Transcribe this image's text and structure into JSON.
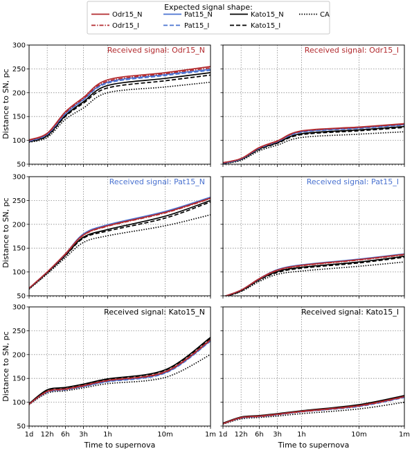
{
  "legend": {
    "title": "Expected signal shape:",
    "placement": "top-center",
    "entries": [
      {
        "label": "Odr15_N",
        "color": "#b22a2e",
        "dash": "solid"
      },
      {
        "label": "Odr15_I",
        "color": "#b22a2e",
        "dash": "dashdot"
      },
      {
        "label": "Pat15_N",
        "color": "#4a72d0",
        "dash": "solid"
      },
      {
        "label": "Pat15_I",
        "color": "#4a72d0",
        "dash": "dashed"
      },
      {
        "label": "Kato15_N",
        "color": "#000000",
        "dash": "solid"
      },
      {
        "label": "Kato15_I",
        "color": "#000000",
        "dash": "dashed"
      },
      {
        "label": "CA",
        "color": "#000000",
        "dash": "dotted"
      }
    ]
  },
  "ylabel": "Distance to SN, pc",
  "xlabel": "Time to supernova",
  "x_ticks": [
    "1d",
    "12h",
    "6h",
    "3h",
    "1h",
    "10m",
    "1m"
  ],
  "y_ticks": [
    "50",
    "100",
    "150",
    "200",
    "250",
    "300"
  ],
  "chart_data": [
    {
      "type": "line",
      "panel": "row1-left",
      "annotation": "Received signal: Odr15_N",
      "annotation_color": "#b22a2e",
      "x_scale": "log-time",
      "ylim": [
        50,
        300
      ],
      "grid": true,
      "x": [
        "1d",
        "12h",
        "6h",
        "3h",
        "1h",
        "10m",
        "1m"
      ],
      "series": [
        {
          "name": "Odr15_N",
          "values": [
            101,
            115,
            160,
            190,
            227,
            242,
            255
          ]
        },
        {
          "name": "Odr15_I",
          "values": [
            100,
            114,
            158,
            188,
            224,
            240,
            252
          ]
        },
        {
          "name": "Pat15_N",
          "values": [
            99,
            113,
            156,
            186,
            222,
            238,
            249
          ]
        },
        {
          "name": "Pat15_I",
          "values": [
            98,
            112,
            155,
            185,
            220,
            236,
            247
          ]
        },
        {
          "name": "Kato15_N",
          "values": [
            97,
            110,
            152,
            181,
            215,
            230,
            242
          ]
        },
        {
          "name": "Kato15_I",
          "values": [
            97,
            109,
            150,
            178,
            210,
            225,
            237
          ]
        },
        {
          "name": "CA",
          "values": [
            96,
            106,
            144,
            168,
            200,
            212,
            222
          ]
        }
      ]
    },
    {
      "type": "line",
      "panel": "row1-right",
      "annotation": "Received signal: Odr15_I",
      "annotation_color": "#b22a2e",
      "x_scale": "log-time",
      "ylim": [
        50,
        300
      ],
      "grid": true,
      "x": [
        "1d",
        "12h",
        "6h",
        "3h",
        "1h",
        "10m",
        "1m"
      ],
      "series": [
        {
          "name": "Odr15_N",
          "values": [
            53,
            62,
            85,
            99,
            120,
            128,
            135
          ]
        },
        {
          "name": "Odr15_I",
          "values": [
            53,
            62,
            84,
            98,
            119,
            127,
            134
          ]
        },
        {
          "name": "Pat15_N",
          "values": [
            52,
            61,
            84,
            98,
            118,
            126,
            133
          ]
        },
        {
          "name": "Pat15_I",
          "values": [
            52,
            61,
            83,
            97,
            117,
            125,
            132
          ]
        },
        {
          "name": "Kato15_N",
          "values": [
            52,
            60,
            82,
            95,
            114,
            122,
            129
          ]
        },
        {
          "name": "Kato15_I",
          "values": [
            51,
            60,
            81,
            94,
            112,
            120,
            127
          ]
        },
        {
          "name": "CA",
          "values": [
            51,
            58,
            78,
            90,
            106,
            113,
            118
          ]
        }
      ]
    },
    {
      "type": "line",
      "panel": "row2-left",
      "annotation": "Received signal: Pat15_N",
      "annotation_color": "#4a72d0",
      "x_scale": "log-time",
      "ylim": [
        50,
        300
      ],
      "grid": true,
      "x": [
        "1d",
        "12h",
        "6h",
        "3h",
        "1h",
        "10m",
        "1m"
      ],
      "series": [
        {
          "name": "Odr15_N",
          "values": [
            66,
            100,
            138,
            178,
            197,
            225,
            255
          ]
        },
        {
          "name": "Odr15_I",
          "values": [
            66,
            100,
            137,
            177,
            196,
            224,
            254
          ]
        },
        {
          "name": "Pat15_N",
          "values": [
            66,
            100,
            138,
            180,
            199,
            227,
            257
          ]
        },
        {
          "name": "Pat15_I",
          "values": [
            66,
            100,
            137,
            179,
            198,
            226,
            256
          ]
        },
        {
          "name": "Kato15_N",
          "values": [
            65,
            99,
            135,
            173,
            189,
            217,
            250
          ]
        },
        {
          "name": "Kato15_I",
          "values": [
            65,
            98,
            134,
            171,
            186,
            213,
            247
          ]
        },
        {
          "name": "CA",
          "values": [
            64,
            96,
            130,
            162,
            176,
            197,
            220
          ]
        }
      ]
    },
    {
      "type": "line",
      "panel": "row2-right",
      "annotation": "Received signal: Pat15_I",
      "annotation_color": "#4a72d0",
      "x_scale": "log-time",
      "ylim": [
        50,
        300
      ],
      "grid": true,
      "x": [
        "1d",
        "12h",
        "6h",
        "3h",
        "1h",
        "10m",
        "1m"
      ],
      "series": [
        {
          "name": "Odr15_N",
          "values": [
            48,
            62,
            86,
            104,
            114,
            126,
            137
          ]
        },
        {
          "name": "Odr15_I",
          "values": [
            48,
            62,
            85,
            103,
            113,
            125,
            136
          ]
        },
        {
          "name": "Pat15_N",
          "values": [
            48,
            62,
            86,
            105,
            115,
            127,
            138
          ]
        },
        {
          "name": "Pat15_I",
          "values": [
            48,
            62,
            85,
            104,
            114,
            126,
            137
          ]
        },
        {
          "name": "Kato15_N",
          "values": [
            47,
            61,
            84,
            101,
            110,
            121,
            133
          ]
        },
        {
          "name": "Kato15_I",
          "values": [
            47,
            60,
            83,
            99,
            108,
            119,
            131
          ]
        },
        {
          "name": "CA",
          "values": [
            47,
            59,
            80,
            95,
            102,
            112,
            121
          ]
        }
      ]
    },
    {
      "type": "line",
      "panel": "row3-left",
      "annotation": "Received signal: Kato15_N",
      "annotation_color": "#000000",
      "x_scale": "log-time",
      "ylim": [
        50,
        300
      ],
      "grid": true,
      "x": [
        "1d",
        "12h",
        "6h",
        "3h",
        "1h",
        "10m",
        "1m"
      ],
      "series": [
        {
          "name": "Odr15_N",
          "values": [
            96,
            123,
            128,
            135,
            146,
            164,
            231
          ]
        },
        {
          "name": "Odr15_I",
          "values": [
            96,
            122,
            127,
            134,
            145,
            163,
            230
          ]
        },
        {
          "name": "Pat15_N",
          "values": [
            96,
            122,
            127,
            133,
            144,
            162,
            229
          ]
        },
        {
          "name": "Pat15_I",
          "values": [
            96,
            121,
            126,
            133,
            143,
            161,
            228
          ]
        },
        {
          "name": "Kato15_N",
          "values": [
            97,
            126,
            131,
            138,
            149,
            168,
            236
          ]
        },
        {
          "name": "Kato15_I",
          "values": [
            97,
            125,
            130,
            137,
            148,
            167,
            234
          ]
        },
        {
          "name": "CA",
          "values": [
            95,
            119,
            124,
            130,
            139,
            152,
            200
          ]
        }
      ]
    },
    {
      "type": "line",
      "panel": "row3-right",
      "annotation": "Received signal: Kato15_I",
      "annotation_color": "#000000",
      "x_scale": "log-time",
      "ylim": [
        50,
        300
      ],
      "grid": true,
      "x": [
        "1d",
        "12h",
        "6h",
        "3h",
        "1h",
        "10m",
        "1m"
      ],
      "series": [
        {
          "name": "Odr15_N",
          "values": [
            55,
            68,
            71,
            75,
            81,
            93,
            112
          ]
        },
        {
          "name": "Odr15_I",
          "values": [
            55,
            67,
            70,
            74,
            80,
            92,
            111
          ]
        },
        {
          "name": "Pat15_N",
          "values": [
            55,
            67,
            70,
            74,
            80,
            92,
            111
          ]
        },
        {
          "name": "Pat15_I",
          "values": [
            55,
            67,
            70,
            74,
            80,
            91,
            110
          ]
        },
        {
          "name": "Kato15_N",
          "values": [
            56,
            69,
            72,
            76,
            82,
            95,
            114
          ]
        },
        {
          "name": "Kato15_I",
          "values": [
            56,
            68,
            71,
            75,
            81,
            94,
            113
          ]
        },
        {
          "name": "CA",
          "values": [
            54,
            65,
            68,
            71,
            76,
            86,
            100
          ]
        }
      ]
    }
  ]
}
